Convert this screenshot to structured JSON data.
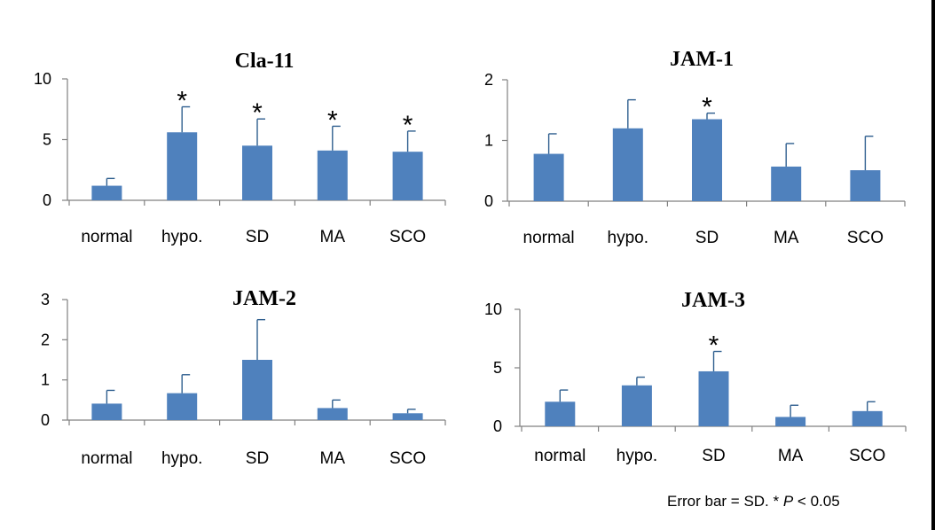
{
  "chart_data": [
    {
      "type": "bar",
      "title": "Cla-11",
      "categories": [
        "normal",
        "hypo.",
        "SD",
        "MA",
        "SCO"
      ],
      "values": [
        1.2,
        5.6,
        4.5,
        4.1,
        4.0
      ],
      "errors": [
        0.6,
        2.1,
        2.2,
        2.0,
        1.7
      ],
      "significant": [
        false,
        true,
        true,
        true,
        true
      ],
      "yticks": [
        "0",
        "5",
        "10"
      ],
      "ylim": [
        0,
        10
      ]
    },
    {
      "type": "bar",
      "title": "JAM-1",
      "categories": [
        "normal",
        "hypo.",
        "SD",
        "MA",
        "SCO"
      ],
      "values": [
        0.78,
        1.2,
        1.35,
        0.57,
        0.51
      ],
      "errors": [
        0.33,
        0.47,
        0.1,
        0.38,
        0.56
      ],
      "significant": [
        false,
        false,
        true,
        false,
        false
      ],
      "yticks": [
        "0",
        "1",
        "2"
      ],
      "ylim": [
        0,
        2
      ]
    },
    {
      "type": "bar",
      "title": "JAM-2",
      "categories": [
        "normal",
        "hypo.",
        "SD",
        "MA",
        "SCO"
      ],
      "values": [
        0.41,
        0.67,
        1.5,
        0.3,
        0.17
      ],
      "errors": [
        0.33,
        0.46,
        1.0,
        0.2,
        0.1
      ],
      "significant": [
        false,
        false,
        false,
        false,
        false
      ],
      "yticks": [
        "0",
        "1",
        "2",
        "3"
      ],
      "ylim": [
        0,
        3
      ]
    },
    {
      "type": "bar",
      "title": "JAM-3",
      "categories": [
        "normal",
        "hypo.",
        "SD",
        "MA",
        "SCO"
      ],
      "values": [
        2.1,
        3.5,
        4.7,
        0.8,
        1.3
      ],
      "errors": [
        1.0,
        0.7,
        1.7,
        1.0,
        0.8
      ],
      "significant": [
        false,
        false,
        true,
        false,
        false
      ],
      "yticks": [
        "0",
        "5",
        "10"
      ],
      "ylim": [
        0,
        10
      ]
    }
  ],
  "significance_mark": "*",
  "footnote": {
    "text": "Error bar = SD.   * ",
    "p_symbol": "P",
    "threshold": " < 0.05"
  },
  "colors": {
    "bar": "#4f81bd",
    "axis": "#808080",
    "text": "#000000"
  }
}
